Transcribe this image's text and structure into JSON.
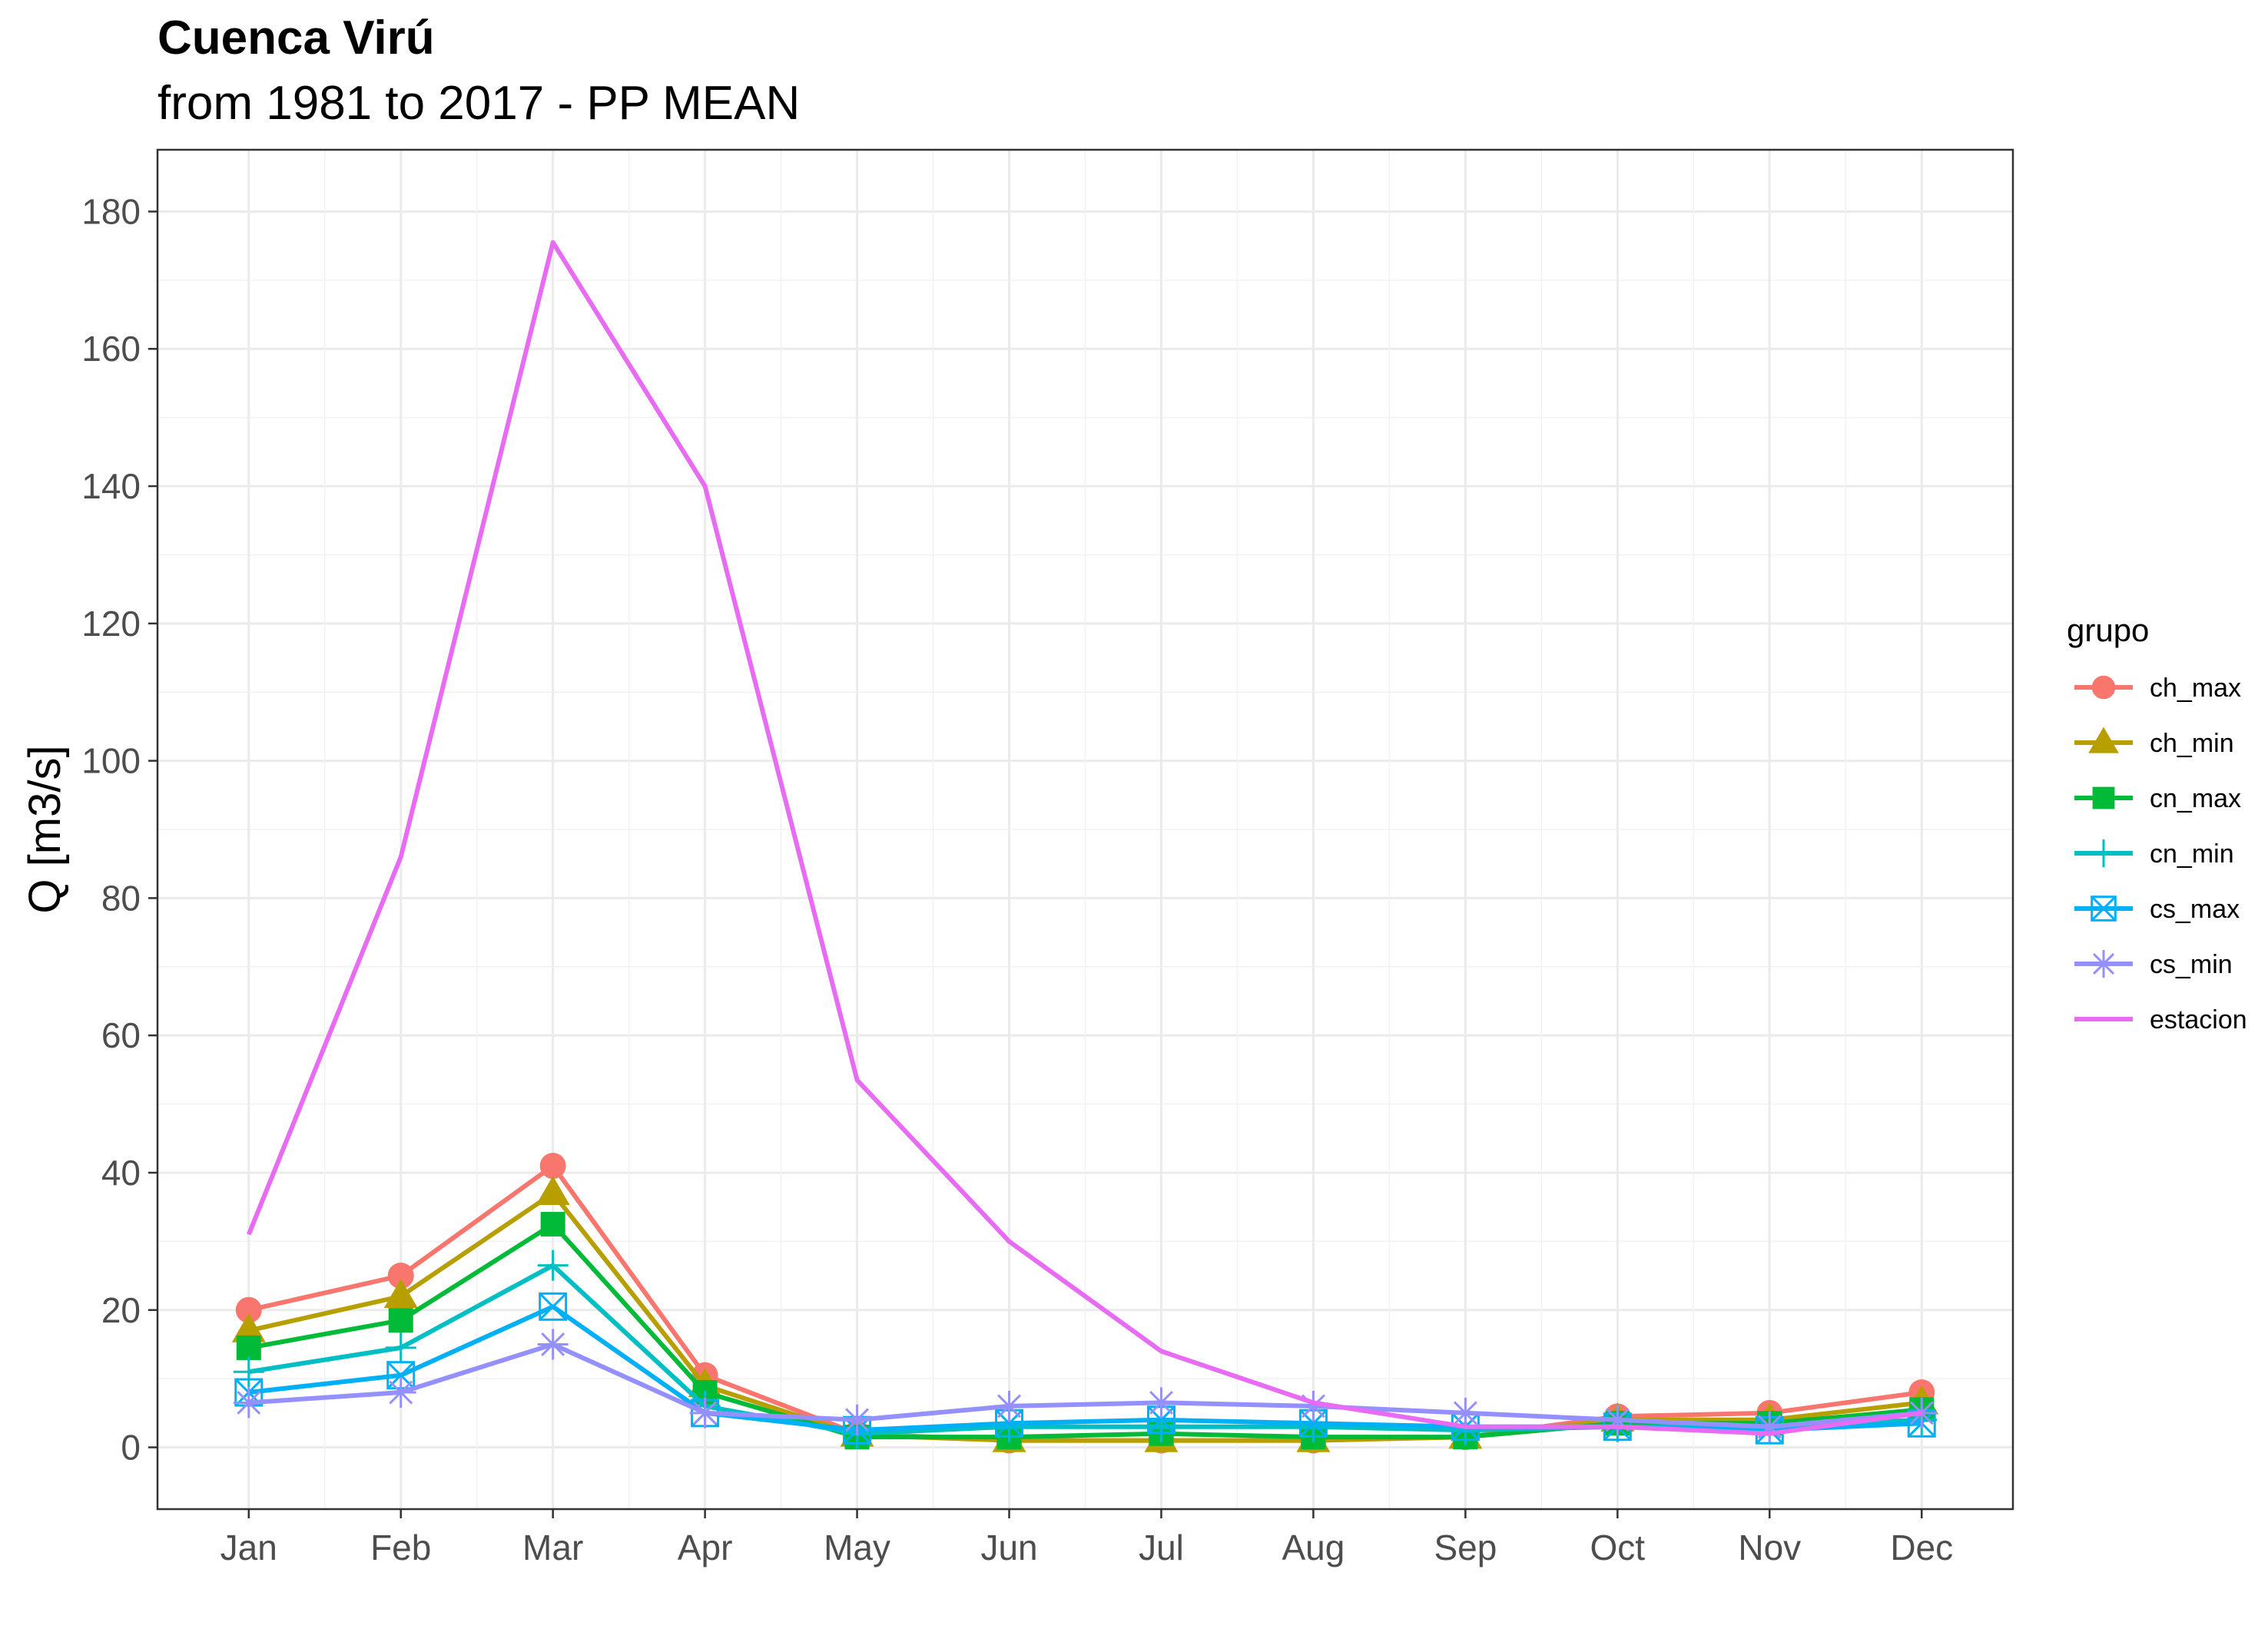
{
  "chart_data": {
    "type": "line",
    "title": "Cuenca Virú",
    "subtitle": "from 1981 to 2017 - PP MEAN",
    "xlabel": "",
    "ylabel": "Q [m3/s]",
    "categories": [
      "Jan",
      "Feb",
      "Mar",
      "Apr",
      "May",
      "Jun",
      "Jul",
      "Aug",
      "Sep",
      "Oct",
      "Nov",
      "Dec"
    ],
    "ylim": [
      -9,
      189
    ],
    "yticks": [
      0,
      20,
      40,
      60,
      80,
      100,
      120,
      140,
      160,
      180
    ],
    "grid": true,
    "legend": {
      "title": "grupo",
      "position": "right"
    },
    "series": [
      {
        "name": "ch_max",
        "color": "#F8766D",
        "marker": "circle",
        "values": [
          20,
          25,
          41,
          10.5,
          2,
          1,
          1,
          1,
          1.5,
          4.5,
          5,
          8
        ]
      },
      {
        "name": "ch_min",
        "color": "#B79F00",
        "marker": "triangle",
        "values": [
          17,
          22,
          37,
          9,
          1.8,
          1,
          1,
          1,
          1.5,
          4,
          4,
          6.5
        ]
      },
      {
        "name": "cn_max",
        "color": "#00BA38",
        "marker": "square",
        "values": [
          14.5,
          18.5,
          32.5,
          8,
          1.5,
          1.5,
          2,
          1.5,
          1.5,
          3.5,
          3.5,
          5.5
        ]
      },
      {
        "name": "cn_min",
        "color": "#00BFC4",
        "marker": "plus",
        "values": [
          11,
          14.5,
          26.5,
          6,
          2,
          3,
          3,
          3,
          2.5,
          3,
          3,
          4
        ]
      },
      {
        "name": "cs_max",
        "color": "#00B0F6",
        "marker": "square-x",
        "values": [
          8,
          10.5,
          20.5,
          5,
          2.5,
          3.5,
          4,
          3.5,
          3,
          3,
          2.5,
          3.5
        ]
      },
      {
        "name": "cs_min",
        "color": "#9590FF",
        "marker": "asterisk",
        "values": [
          6.5,
          8,
          15,
          5,
          4,
          6,
          6.5,
          6,
          5,
          4,
          3,
          5
        ]
      },
      {
        "name": "estacion",
        "color": "#E76BF3",
        "marker": "none",
        "values": [
          31,
          86,
          175.5,
          140,
          53.5,
          30,
          14,
          6.5,
          3,
          3,
          2,
          5
        ]
      }
    ]
  }
}
